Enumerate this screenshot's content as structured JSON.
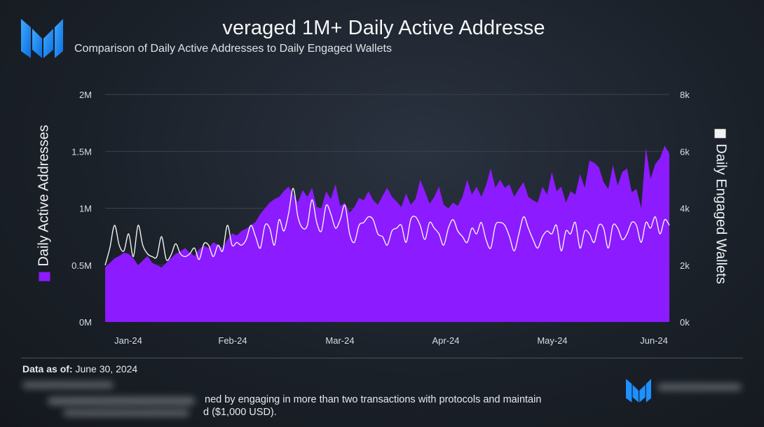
{
  "title": "veraged 1M+ Daily Active Addresse",
  "subtitle": "Comparison of Daily Active Addresses to Daily Engaged Wallets",
  "footer": {
    "as_of_label": "Data as of:",
    "as_of_value": " June 30, 2024",
    "note_line1": "ned by engaging in more than two transactions with protocols and maintain",
    "note_line2": "d ($1,000 USD)."
  },
  "colors": {
    "area": "#8c1bff",
    "line": "#f2f2f2",
    "brand": "#1e90ff"
  },
  "chart_data": {
    "type": "area",
    "x_ticks": [
      "Jan-24",
      "Feb-24",
      "Mar-24",
      "Apr-24",
      "May-24",
      "Jun-24"
    ],
    "left_axis": {
      "label": "Daily Active Addresses",
      "ticks": [
        "0M",
        "0.5M",
        "1M",
        "1.5M",
        "2M"
      ],
      "ylim": [
        0,
        2000000
      ]
    },
    "right_axis": {
      "label": "Daily Engaged Wallets",
      "ticks": [
        "0k",
        "2k",
        "4k",
        "6k",
        "8k"
      ],
      "ylim": [
        0,
        8000
      ]
    },
    "grid": true,
    "series": [
      {
        "name": "Daily Active Addresses",
        "type": "area",
        "axis": "left",
        "values": [
          480000,
          520000,
          560000,
          580000,
          610000,
          600000,
          560000,
          500000,
          540000,
          580000,
          520000,
          500000,
          480000,
          520000,
          560000,
          600000,
          620000,
          650000,
          610000,
          580000,
          640000,
          670000,
          650000,
          700000,
          680000,
          650000,
          720000,
          780000,
          760000,
          800000,
          820000,
          850000,
          880000,
          950000,
          1000000,
          1050000,
          1080000,
          1100000,
          1150000,
          1190000,
          1120000,
          1050000,
          1160000,
          1100000,
          1180000,
          1010000,
          1000000,
          1150000,
          1080000,
          1210000,
          1020000,
          1050000,
          960000,
          1010000,
          1090000,
          1070000,
          1150000,
          1070000,
          1030000,
          1110000,
          1180000,
          1100000,
          1060000,
          1010000,
          1130000,
          1030000,
          1080000,
          1250000,
          1150000,
          1040000,
          1100000,
          1190000,
          1030000,
          1000000,
          1050000,
          1020000,
          1100000,
          1250000,
          1120000,
          1190000,
          1100000,
          1200000,
          1350000,
          1180000,
          1250000,
          1180000,
          1210000,
          1100000,
          1170000,
          1230000,
          1100000,
          1070000,
          1050000,
          1190000,
          1120000,
          1320000,
          1150000,
          1190000,
          1050000,
          1150000,
          1120000,
          1300000,
          1180000,
          1420000,
          1400000,
          1360000,
          1230000,
          1170000,
          1380000,
          1200000,
          1320000,
          1350000,
          1140000,
          1170000,
          1000000,
          1530000,
          1260000,
          1390000,
          1440000,
          1550000,
          1480000
        ]
      },
      {
        "name": "Daily Engaged Wallets",
        "type": "line",
        "axis": "right",
        "values": [
          2000,
          2600,
          3400,
          2700,
          2500,
          3100,
          2300,
          3400,
          2700,
          2400,
          2300,
          2300,
          3000,
          2200,
          2350,
          2750,
          2400,
          2300,
          2400,
          2600,
          2200,
          2750,
          2700,
          2300,
          2700,
          2500,
          3400,
          2700,
          2800,
          2700,
          2900,
          3400,
          3000,
          2600,
          3400,
          3300,
          2700,
          3600,
          3200,
          3800,
          4700,
          3700,
          3300,
          3400,
          4300,
          3500,
          3200,
          4100,
          3800,
          3300,
          3600,
          4100,
          3100,
          2800,
          3400,
          3500,
          3700,
          3600,
          3100,
          3000,
          2700,
          3200,
          3300,
          3400,
          2800,
          3600,
          3700,
          3400,
          2900,
          3500,
          3300,
          3100,
          2700,
          3300,
          3600,
          3200,
          3000,
          2800,
          3300,
          3100,
          3500,
          2900,
          2600,
          3400,
          3500,
          3400,
          3000,
          2500,
          3100,
          3700,
          3300,
          2900,
          2600,
          3000,
          3200,
          3100,
          3400,
          2500,
          3200,
          3100,
          3500,
          2600,
          3200,
          3100,
          2800,
          3400,
          3300,
          2600,
          3400,
          3300,
          2900,
          3100,
          3500,
          3400,
          2800,
          3500,
          3300,
          3700,
          3100,
          3600,
          3400
        ]
      }
    ]
  }
}
